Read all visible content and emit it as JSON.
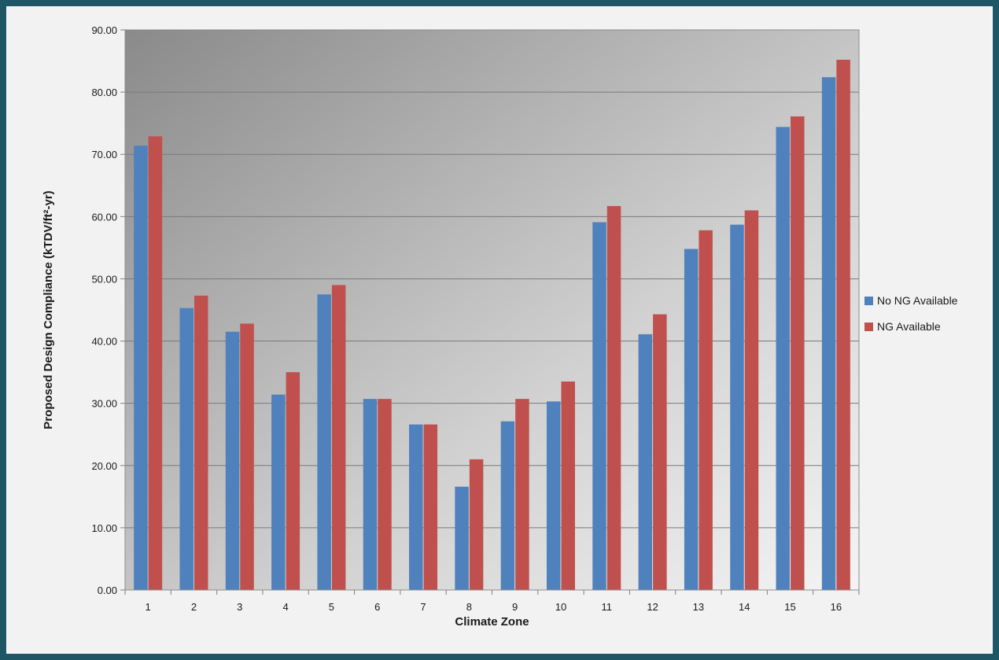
{
  "chart_data": {
    "type": "bar",
    "xlabel": "Climate Zone",
    "ylabel": "Proposed Design Compliance (kTDV/ft²-yr)",
    "ylim": [
      0,
      90
    ],
    "yticks": [
      "0.00",
      "10.00",
      "20.00",
      "30.00",
      "40.00",
      "50.00",
      "60.00",
      "70.00",
      "80.00",
      "90.00"
    ],
    "grid": true,
    "legend_position": "right",
    "categories": [
      "1",
      "2",
      "3",
      "4",
      "5",
      "6",
      "7",
      "8",
      "9",
      "10",
      "11",
      "12",
      "13",
      "14",
      "15",
      "16"
    ],
    "series": [
      {
        "name": "No NG Available",
        "color": "#4f81bd",
        "values": [
          71.4,
          45.3,
          41.5,
          31.4,
          47.5,
          30.7,
          26.6,
          16.6,
          27.1,
          30.3,
          59.1,
          41.1,
          54.8,
          58.7,
          74.4,
          82.4
        ]
      },
      {
        "name": "NG Available",
        "color": "#c0504d",
        "values": [
          72.9,
          47.3,
          42.8,
          35.0,
          49.0,
          30.7,
          26.6,
          21.0,
          30.7,
          33.5,
          61.7,
          44.3,
          57.8,
          61.0,
          76.1,
          85.2
        ]
      }
    ]
  }
}
